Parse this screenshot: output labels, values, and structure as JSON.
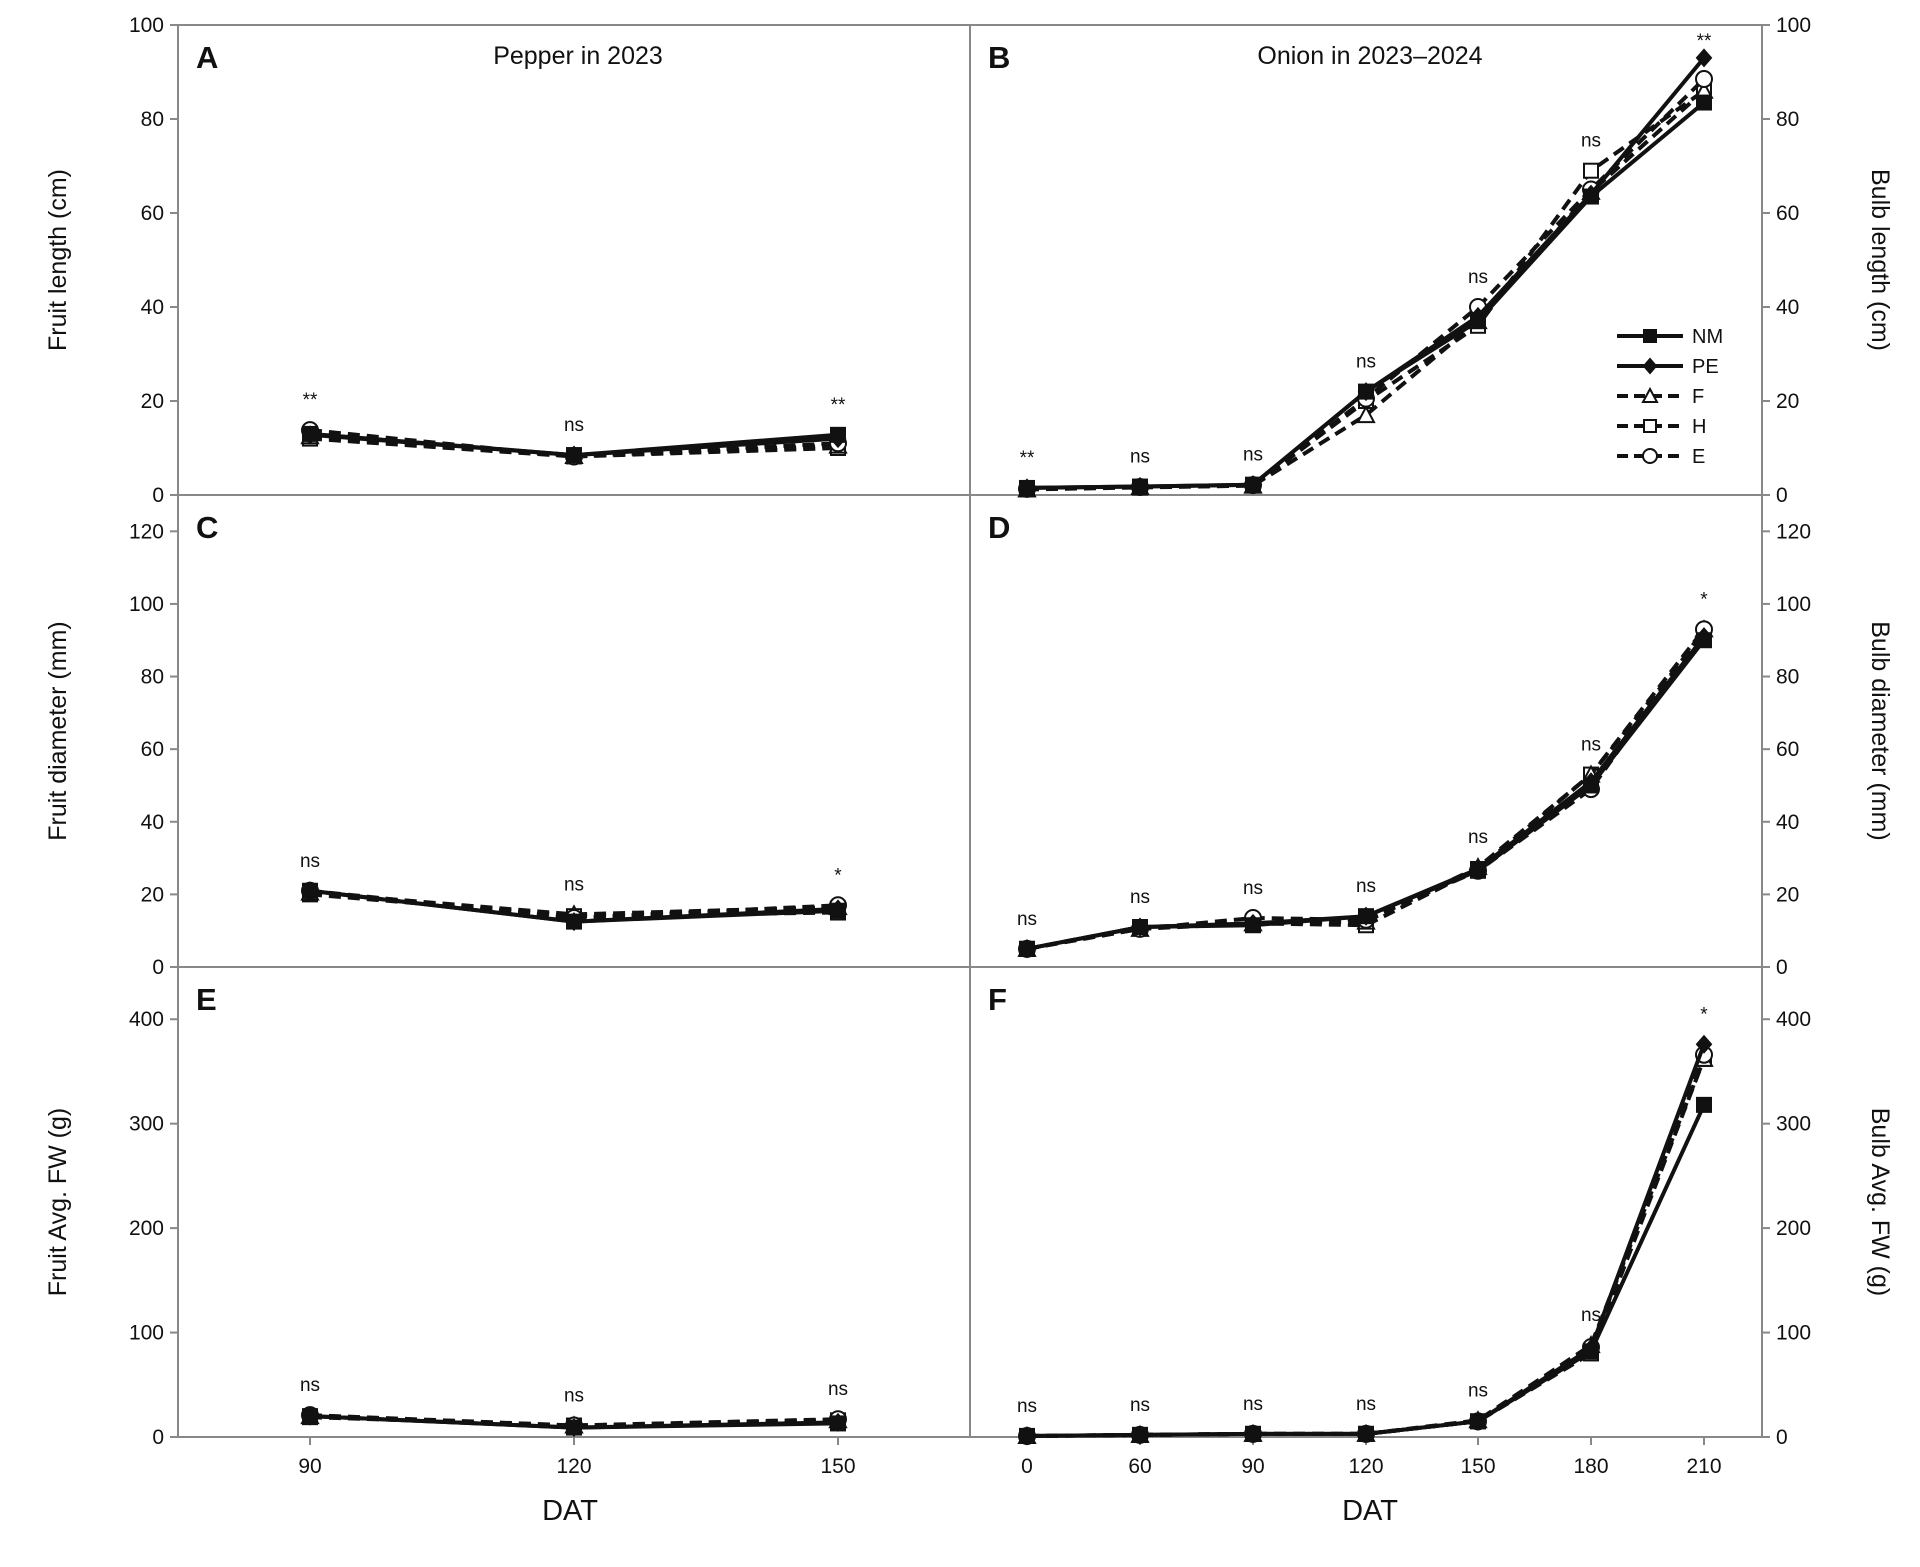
{
  "chart_data": [
    {
      "id": "A",
      "type": "line",
      "letter": "A",
      "title": "Pepper in 2023",
      "ylabel": "Fruit length (cm)",
      "ylim": [
        0,
        100
      ],
      "yticks": [
        0,
        20,
        40,
        60,
        80,
        100
      ],
      "x": [
        90,
        120,
        150
      ],
      "series": [
        {
          "name": "NM",
          "values": [
            13,
            8.5,
            12.8
          ]
        },
        {
          "name": "PE",
          "values": [
            12.8,
            8.5,
            12
          ]
        },
        {
          "name": "F",
          "values": [
            12.5,
            8.3,
            10.5
          ]
        },
        {
          "name": "H",
          "values": [
            12,
            8.2,
            10
          ]
        },
        {
          "name": "E",
          "values": [
            13.8,
            8.2,
            11
          ]
        }
      ],
      "significance": [
        "**",
        "ns",
        "**"
      ]
    },
    {
      "id": "B",
      "type": "line",
      "letter": "B",
      "title": "Onion in 2023–2024",
      "ylabel": "Bulb length (cm)",
      "ylim": [
        0,
        100
      ],
      "yticks": [
        0,
        20,
        40,
        60,
        80,
        100
      ],
      "x": [
        0,
        60,
        90,
        120,
        150,
        180,
        210
      ],
      "series": [
        {
          "name": "NM",
          "values": [
            1.5,
            1.8,
            2.2,
            22,
            37,
            63.5,
            83.5
          ]
        },
        {
          "name": "PE",
          "values": [
            1.5,
            1.8,
            2.2,
            22,
            38,
            64,
            93
          ]
        },
        {
          "name": "F",
          "values": [
            1.2,
            1.7,
            2.0,
            17,
            37,
            64.5,
            86
          ]
        },
        {
          "name": "H",
          "values": [
            1.2,
            1.6,
            2.0,
            20,
            36,
            69,
            86
          ]
        },
        {
          "name": "E",
          "values": [
            1.3,
            1.7,
            2.1,
            20.5,
            40,
            65,
            88.5
          ]
        }
      ],
      "significance": [
        "**",
        "ns",
        "ns",
        "ns",
        "ns",
        "ns",
        "**"
      ]
    },
    {
      "id": "C",
      "type": "line",
      "letter": "C",
      "title": "",
      "ylabel": "Fruit diameter (mm)",
      "ylim": [
        0,
        130
      ],
      "yticks": [
        0,
        20,
        40,
        60,
        80,
        100,
        120
      ],
      "x": [
        90,
        120,
        150
      ],
      "series": [
        {
          "name": "NM",
          "values": [
            21,
            12.5,
            15.5
          ]
        },
        {
          "name": "PE",
          "values": [
            21,
            12.5,
            16
          ]
        },
        {
          "name": "F",
          "values": [
            20.5,
            14.5,
            16.5
          ]
        },
        {
          "name": "H",
          "values": [
            20,
            14,
            15
          ]
        },
        {
          "name": "E",
          "values": [
            21,
            13.5,
            17
          ]
        }
      ],
      "significance": [
        "ns",
        "ns",
        "*"
      ]
    },
    {
      "id": "D",
      "type": "line",
      "letter": "D",
      "title": "",
      "ylabel": "Bulb diameter (mm)",
      "ylim": [
        0,
        130
      ],
      "yticks": [
        0,
        20,
        40,
        60,
        80,
        100,
        120
      ],
      "x": [
        0,
        60,
        90,
        120,
        150,
        180,
        210
      ],
      "series": [
        {
          "name": "NM",
          "values": [
            5,
            11,
            11.5,
            14,
            26.5,
            50,
            90
          ]
        },
        {
          "name": "PE",
          "values": [
            5,
            11,
            12,
            14,
            27,
            51,
            91
          ]
        },
        {
          "name": "F",
          "values": [
            5,
            10.5,
            12,
            12.5,
            27.5,
            53,
            93
          ]
        },
        {
          "name": "H",
          "values": [
            5,
            11,
            12,
            11.5,
            27,
            53,
            92
          ]
        },
        {
          "name": "E",
          "values": [
            5,
            10.5,
            13.5,
            13,
            26.5,
            49,
            93
          ]
        }
      ],
      "significance": [
        "ns",
        "ns",
        "ns",
        "ns",
        "ns",
        "ns",
        "*"
      ]
    },
    {
      "id": "E",
      "type": "line",
      "letter": "E",
      "title": "",
      "ylabel": "Fruit Avg. FW (g)",
      "ylim": [
        0,
        450
      ],
      "yticks": [
        0,
        100,
        200,
        300,
        400
      ],
      "x": [
        90,
        120,
        150
      ],
      "series": [
        {
          "name": "NM",
          "values": [
            20,
            9,
            13
          ]
        },
        {
          "name": "PE",
          "values": [
            20,
            9,
            14
          ]
        },
        {
          "name": "F",
          "values": [
            20,
            11,
            16
          ]
        },
        {
          "name": "H",
          "values": [
            19,
            11,
            16
          ]
        },
        {
          "name": "E",
          "values": [
            21,
            11,
            17
          ]
        }
      ],
      "significance": [
        "ns",
        "ns",
        "ns"
      ]
    },
    {
      "id": "F",
      "type": "line",
      "letter": "F",
      "title": "",
      "ylabel": "Bulb Avg. FW (g)",
      "ylim": [
        0,
        450
      ],
      "yticks": [
        0,
        100,
        200,
        300,
        400
      ],
      "x": [
        0,
        60,
        90,
        120,
        150,
        180,
        210
      ],
      "series": [
        {
          "name": "NM",
          "values": [
            1,
            2,
            3,
            3,
            15,
            82,
            318
          ]
        },
        {
          "name": "PE",
          "values": [
            1,
            2,
            3,
            3,
            15,
            85,
            376
          ]
        },
        {
          "name": "F",
          "values": [
            1,
            2,
            3,
            3,
            16,
            88,
            362
          ]
        },
        {
          "name": "H",
          "values": [
            1,
            2,
            3,
            3,
            15,
            80,
            362
          ]
        },
        {
          "name": "E",
          "values": [
            1,
            2,
            3,
            3,
            15,
            86,
            366
          ]
        }
      ],
      "significance": [
        "ns",
        "ns",
        "ns",
        "ns",
        "ns",
        "ns",
        "*"
      ]
    }
  ],
  "x_axis_title": "DAT",
  "legend": [
    {
      "name": "NM",
      "marker": "square-filled",
      "dash": "solid"
    },
    {
      "name": "PE",
      "marker": "diamond-filled",
      "dash": "solid"
    },
    {
      "name": "F",
      "marker": "triangle-open",
      "dash": "dashed"
    },
    {
      "name": "H",
      "marker": "square-open",
      "dash": "dashed"
    },
    {
      "name": "E",
      "marker": "circle-open",
      "dash": "dashed"
    }
  ],
  "legend_position": "inside panel B, right",
  "grid": false,
  "colors": {
    "line": "#111111",
    "frame": "#888888",
    "open_fill": "#ffffff"
  }
}
